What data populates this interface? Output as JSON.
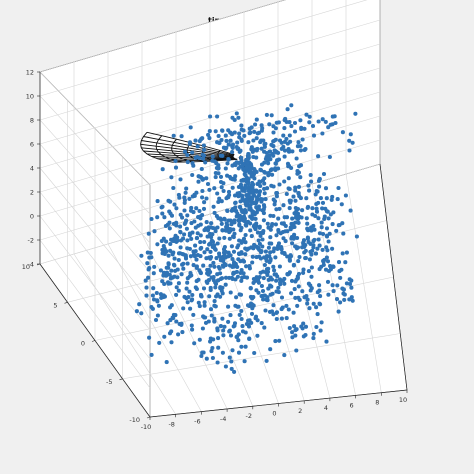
{
  "chart_data": {
    "type": "scatter",
    "title": "time = 10.02",
    "xlabel": "",
    "ylabel": "",
    "zlabel": "",
    "xlim": [
      -10,
      10
    ],
    "ylim": [
      -10,
      10
    ],
    "zlim": [
      -4,
      12
    ],
    "x_ticks": [
      "-10",
      "-8",
      "-6",
      "-4",
      "-2",
      "0",
      "2",
      "4",
      "6",
      "8",
      "10"
    ],
    "y_ticks": [
      "-10",
      "-5",
      "0",
      "5",
      "10"
    ],
    "z_ticks": [
      "-4",
      "-2",
      "0",
      "2",
      "4",
      "6",
      "8",
      "10",
      "12"
    ],
    "grid": true,
    "view": "3-D perspective, azimuth approx. -15, elevation approx. 30",
    "point_color": "#2f73b5",
    "mesh_color": "#000000",
    "series": [
      {
        "type": "scatter3",
        "description_points": "approx. 1500 particles forming a bulb-shaped cloud; base spans roughly x -8..8, y -6..6 at z -4..0, narrowing to a neck near (0.5, 1, 6) that feeds a radial fan around z 6..8",
        "point_count": 1500
      },
      {
        "type": "mesh",
        "description_points": "black spiked sector mesh (partial cone) spanning azimuth approx. 150..215 deg, radius approx. 1..7, near z 8.5",
        "color": "#000000"
      }
    ]
  }
}
